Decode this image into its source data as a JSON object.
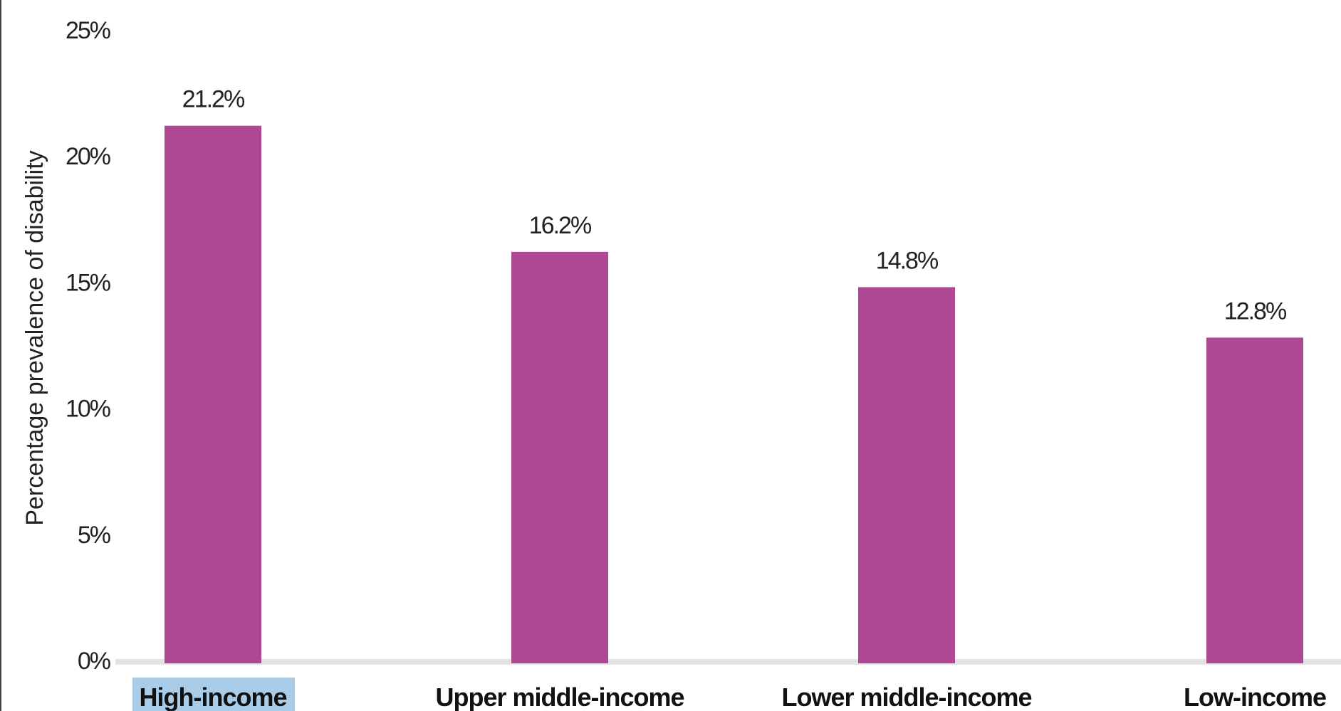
{
  "chart_data": {
    "type": "bar",
    "categories": [
      "High-income",
      "Upper middle-income",
      "Lower middle-income",
      "Low-income"
    ],
    "values": [
      21.2,
      16.2,
      14.8,
      12.8
    ],
    "data_labels": [
      "21.2%",
      "16.2%",
      "14.8%",
      "12.8%"
    ],
    "xlabel": "",
    "ylabel": "Percentage prevalence of disability",
    "ylim": [
      0,
      25
    ],
    "yticks": [
      0,
      5,
      10,
      15,
      20,
      25
    ],
    "ytick_labels": [
      "0%",
      "5%",
      "10%",
      "15%",
      "20%",
      "25%"
    ],
    "grid": false,
    "legend": "none",
    "colors": {
      "bar": "#AE4894",
      "baseline": "#E3E3E3",
      "highlight": "#A9CCE8"
    },
    "highlighted_category": "High-income"
  }
}
